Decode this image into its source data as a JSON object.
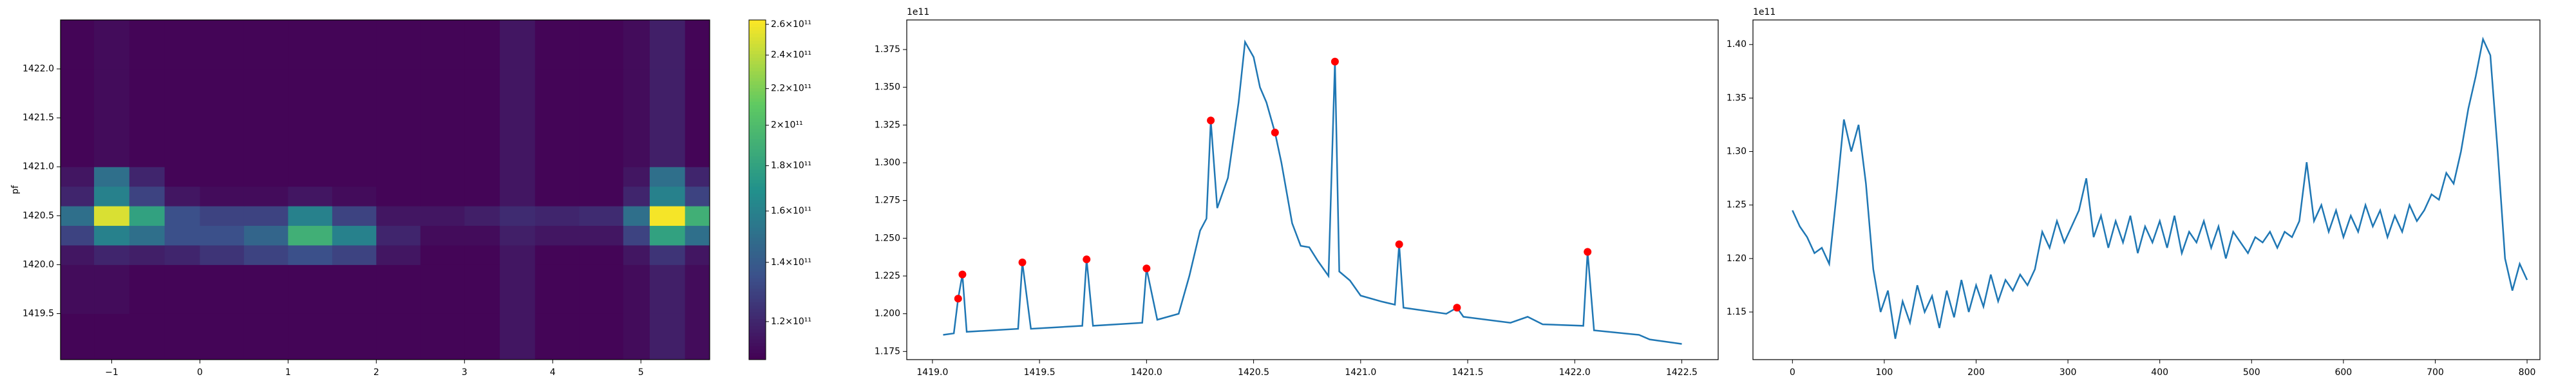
{
  "chart_data": [
    {
      "type": "heatmap",
      "ylabel": "pf",
      "cmap": "viridis",
      "cscale": "log",
      "xbins": [
        -1.58,
        -1.2,
        -0.8,
        -0.4,
        0,
        0.5,
        1,
        1.5,
        2,
        2.5,
        3,
        3.4,
        3.8,
        4.3,
        4.8,
        5.1,
        5.5,
        5.78
      ],
      "ybins": [
        1419.03,
        1419.5,
        1420.0,
        1420.2,
        1420.4,
        1420.6,
        1420.8,
        1421.0,
        1421.5,
        1422.0,
        1422.5
      ],
      "z": [
        [
          110000000000.0,
          110000000000.0,
          110000000000.0,
          110000000000.0,
          110000000000.0,
          110000000000.0,
          110000000000.0,
          110000000000.0,
          110000000000.0,
          110000000000.0,
          110000000000.0,
          115000000000.0,
          110000000000.0,
          110000000000.0,
          112000000000.0,
          118000000000.0,
          112000000000.0
        ],
        [
          112000000000.0,
          112000000000.0,
          110000000000.0,
          110000000000.0,
          110000000000.0,
          110000000000.0,
          110000000000.0,
          110000000000.0,
          110000000000.0,
          110000000000.0,
          110000000000.0,
          115000000000.0,
          110000000000.0,
          110000000000.0,
          112000000000.0,
          118000000000.0,
          112000000000.0
        ],
        [
          115000000000.0,
          120000000000.0,
          118000000000.0,
          120000000000.0,
          125000000000.0,
          130000000000.0,
          135000000000.0,
          130000000000.0,
          115000000000.0,
          110000000000.0,
          110000000000.0,
          115000000000.0,
          110000000000.0,
          110000000000.0,
          115000000000.0,
          125000000000.0,
          115000000000.0
        ],
        [
          130000000000.0,
          160000000000.0,
          150000000000.0,
          135000000000.0,
          135000000000.0,
          145000000000.0,
          190000000000.0,
          160000000000.0,
          120000000000.0,
          112000000000.0,
          112000000000.0,
          118000000000.0,
          115000000000.0,
          115000000000.0,
          130000000000.0,
          180000000000.0,
          150000000000.0
        ],
        [
          150000000000.0,
          250000000000.0,
          180000000000.0,
          135000000000.0,
          130000000000.0,
          130000000000.0,
          160000000000.0,
          130000000000.0,
          115000000000.0,
          115000000000.0,
          118000000000.0,
          122000000000.0,
          120000000000.0,
          122000000000.0,
          150000000000.0,
          260000000000.0,
          190000000000.0
        ],
        [
          120000000000.0,
          160000000000.0,
          130000000000.0,
          115000000000.0,
          112000000000.0,
          112000000000.0,
          115000000000.0,
          112000000000.0,
          110000000000.0,
          110000000000.0,
          110000000000.0,
          115000000000.0,
          110000000000.0,
          110000000000.0,
          120000000000.0,
          160000000000.0,
          130000000000.0
        ],
        [
          115000000000.0,
          150000000000.0,
          120000000000.0,
          110000000000.0,
          110000000000.0,
          110000000000.0,
          110000000000.0,
          110000000000.0,
          110000000000.0,
          110000000000.0,
          110000000000.0,
          115000000000.0,
          110000000000.0,
          110000000000.0,
          115000000000.0,
          150000000000.0,
          120000000000.0
        ],
        [
          110000000000.0,
          112000000000.0,
          110000000000.0,
          110000000000.0,
          110000000000.0,
          110000000000.0,
          110000000000.0,
          110000000000.0,
          110000000000.0,
          110000000000.0,
          110000000000.0,
          115000000000.0,
          110000000000.0,
          110000000000.0,
          112000000000.0,
          118000000000.0,
          110000000000.0
        ],
        [
          110000000000.0,
          112000000000.0,
          110000000000.0,
          110000000000.0,
          110000000000.0,
          110000000000.0,
          110000000000.0,
          110000000000.0,
          110000000000.0,
          110000000000.0,
          110000000000.0,
          115000000000.0,
          110000000000.0,
          110000000000.0,
          112000000000.0,
          118000000000.0,
          110000000000.0
        ],
        [
          110000000000.0,
          112000000000.0,
          110000000000.0,
          110000000000.0,
          110000000000.0,
          110000000000.0,
          110000000000.0,
          110000000000.0,
          110000000000.0,
          110000000000.0,
          110000000000.0,
          115000000000.0,
          110000000000.0,
          110000000000.0,
          112000000000.0,
          118000000000.0,
          110000000000.0
        ]
      ],
      "xlim": [
        -1.58,
        5.78
      ],
      "ylim": [
        1419.03,
        1422.5
      ],
      "xticks": [
        {
          "value": -1,
          "label": "−1"
        },
        0,
        1,
        2,
        3,
        4,
        5
      ],
      "yticks": [
        {
          "value": 1419.5,
          "label": "1419.5"
        },
        {
          "value": 1420,
          "label": "1420.0"
        },
        {
          "value": 1420.5,
          "label": "1420.5"
        },
        {
          "value": 1421,
          "label": "1421.0"
        },
        {
          "value": 1421.5,
          "label": "1421.5"
        },
        {
          "value": 1422,
          "label": "1422.0"
        }
      ],
      "clim": [
        108700000000.0,
        263000000000.0
      ],
      "cticks": [
        {
          "value": 120000000000.0,
          "label": "1.2×10¹¹"
        },
        {
          "value": 140000000000.0,
          "label": "1.4×10¹¹"
        },
        {
          "value": 160000000000.0,
          "label": "1.6×10¹¹"
        },
        {
          "value": 180000000000.0,
          "label": "1.8×10¹¹"
        },
        {
          "value": 200000000000.0,
          "label": "2×10¹¹"
        },
        {
          "value": 220000000000.0,
          "label": "2.2×10¹¹"
        },
        {
          "value": 240000000000.0,
          "label": "2.4×10¹¹"
        },
        {
          "value": 260000000000.0,
          "label": "2.6×10¹¹"
        }
      ]
    },
    {
      "type": "line",
      "offset_label": "1e11",
      "xlim": [
        1418.88,
        1422.67
      ],
      "ylim": [
        1.1696,
        1.3946
      ],
      "xticks": [
        {
          "value": 1419,
          "label": "1419.0"
        },
        {
          "value": 1419.5,
          "label": "1419.5"
        },
        {
          "value": 1420,
          "label": "1420.0"
        },
        {
          "value": 1420.5,
          "label": "1420.5"
        },
        {
          "value": 1421,
          "label": "1421.0"
        },
        {
          "value": 1421.5,
          "label": "1421.5"
        },
        {
          "value": 1422,
          "label": "1422.0"
        },
        {
          "value": 1422.5,
          "label": "1422.5"
        }
      ],
      "yticks": [
        {
          "value": 1.175,
          "label": "1.175"
        },
        {
          "value": 1.2,
          "label": "1.200"
        },
        {
          "value": 1.225,
          "label": "1.225"
        },
        {
          "value": 1.25,
          "label": "1.250"
        },
        {
          "value": 1.275,
          "label": "1.275"
        },
        {
          "value": 1.3,
          "label": "1.300"
        },
        {
          "value": 1.325,
          "label": "1.325"
        },
        {
          "value": 1.35,
          "label": "1.350"
        },
        {
          "value": 1.375,
          "label": "1.375"
        }
      ],
      "series": [
        {
          "color": "#1f77b4",
          "marker": "line",
          "x": [
            1419.05,
            1419.1,
            1419.12,
            1419.14,
            1419.16,
            1419.4,
            1419.42,
            1419.46,
            1419.7,
            1419.72,
            1419.75,
            1419.98,
            1420.0,
            1420.05,
            1420.15,
            1420.2,
            1420.25,
            1420.28,
            1420.3,
            1420.33,
            1420.38,
            1420.43,
            1420.46,
            1420.5,
            1420.53,
            1420.56,
            1420.6,
            1420.63,
            1420.68,
            1420.72,
            1420.76,
            1420.8,
            1420.85,
            1420.88,
            1420.9,
            1420.95,
            1421.0,
            1421.1,
            1421.16,
            1421.18,
            1421.2,
            1421.4,
            1421.45,
            1421.48,
            1421.7,
            1421.78,
            1421.85,
            1422.04,
            1422.06,
            1422.09,
            1422.3,
            1422.35,
            1422.5
          ],
          "values": [
            1.186,
            1.187,
            1.21,
            1.226,
            1.188,
            1.19,
            1.234,
            1.19,
            1.192,
            1.236,
            1.192,
            1.194,
            1.23,
            1.196,
            1.2,
            1.225,
            1.255,
            1.263,
            1.328,
            1.27,
            1.29,
            1.34,
            1.38,
            1.37,
            1.35,
            1.34,
            1.32,
            1.3,
            1.26,
            1.245,
            1.244,
            1.235,
            1.225,
            1.367,
            1.228,
            1.222,
            1.212,
            1.208,
            1.206,
            1.246,
            1.204,
            1.2,
            1.204,
            1.198,
            1.194,
            1.198,
            1.193,
            1.192,
            1.241,
            1.189,
            1.186,
            1.183,
            1.18
          ]
        },
        {
          "color": "#ff0000",
          "marker": "dot",
          "x": [
            1419.12,
            1419.14,
            1419.42,
            1419.72,
            1420.0,
            1420.3,
            1420.6,
            1420.88,
            1421.18,
            1421.45,
            1422.06
          ],
          "values": [
            1.21,
            1.226,
            1.234,
            1.236,
            1.23,
            1.328,
            1.32,
            1.367,
            1.246,
            1.204,
            1.241
          ]
        }
      ]
    },
    {
      "type": "line",
      "offset_label": "1e11",
      "xlim": [
        -43,
        814
      ],
      "ylim": [
        1.1055,
        1.423
      ],
      "xticks": [
        0,
        100,
        200,
        300,
        400,
        500,
        600,
        700,
        800
      ],
      "yticks": [
        1.15,
        {
          "value": 1.2,
          "label": "1.20"
        },
        1.25,
        {
          "value": 1.3,
          "label": "1.30"
        },
        1.35,
        {
          "value": 1.4,
          "label": "1.40"
        }
      ],
      "series": [
        {
          "color": "#1f77b4",
          "marker": "line",
          "x": [
            0,
            8,
            16,
            24,
            32,
            40,
            48,
            56,
            64,
            72,
            80,
            88,
            96,
            104,
            112,
            120,
            128,
            136,
            144,
            152,
            160,
            168,
            176,
            184,
            192,
            200,
            208,
            216,
            224,
            232,
            240,
            248,
            256,
            264,
            272,
            280,
            288,
            296,
            304,
            312,
            320,
            328,
            336,
            344,
            352,
            360,
            368,
            376,
            384,
            392,
            400,
            408,
            416,
            424,
            432,
            440,
            448,
            456,
            464,
            472,
            480,
            488,
            496,
            504,
            512,
            520,
            528,
            536,
            544,
            552,
            560,
            568,
            576,
            584,
            592,
            600,
            608,
            616,
            624,
            632,
            640,
            648,
            656,
            664,
            672,
            680,
            688,
            696,
            704,
            712,
            720,
            728,
            736,
            744,
            752,
            760,
            768,
            776,
            784,
            792,
            800
          ],
          "values": [
            1.245,
            1.23,
            1.22,
            1.205,
            1.21,
            1.195,
            1.26,
            1.33,
            1.3,
            1.325,
            1.27,
            1.19,
            1.15,
            1.17,
            1.125,
            1.16,
            1.14,
            1.175,
            1.15,
            1.165,
            1.135,
            1.17,
            1.145,
            1.18,
            1.15,
            1.175,
            1.155,
            1.185,
            1.16,
            1.18,
            1.17,
            1.185,
            1.175,
            1.19,
            1.225,
            1.21,
            1.235,
            1.215,
            1.23,
            1.245,
            1.275,
            1.22,
            1.24,
            1.21,
            1.235,
            1.215,
            1.24,
            1.205,
            1.23,
            1.215,
            1.235,
            1.21,
            1.24,
            1.205,
            1.225,
            1.215,
            1.235,
            1.21,
            1.23,
            1.2,
            1.225,
            1.215,
            1.205,
            1.22,
            1.215,
            1.225,
            1.21,
            1.225,
            1.22,
            1.235,
            1.29,
            1.235,
            1.25,
            1.225,
            1.245,
            1.22,
            1.24,
            1.225,
            1.25,
            1.23,
            1.245,
            1.22,
            1.24,
            1.225,
            1.25,
            1.235,
            1.245,
            1.26,
            1.255,
            1.28,
            1.27,
            1.3,
            1.34,
            1.37,
            1.405,
            1.39,
            1.3,
            1.2,
            1.17,
            1.195,
            1.18
          ]
        }
      ]
    }
  ]
}
